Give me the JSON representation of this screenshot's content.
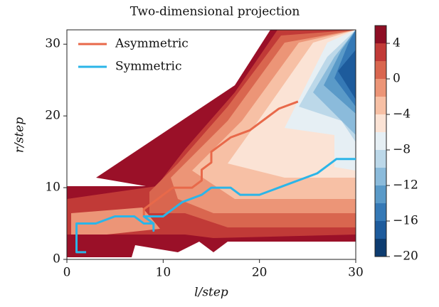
{
  "chart_data": {
    "type": "contour_lines",
    "title": "Two-dimensional projection",
    "x_label": "l/step",
    "y_label": "r/step",
    "xlim": [
      0,
      30
    ],
    "ylim": [
      0,
      32
    ],
    "xticks": [
      0,
      10,
      20,
      30
    ],
    "yticks": [
      0,
      10,
      20,
      30
    ],
    "legend": "upper left",
    "series": [
      {
        "name": "Asymmetric",
        "color": "#e8694a",
        "x": [
          9,
          8,
          8,
          9,
          10,
          11,
          13,
          14,
          14,
          15,
          15,
          17,
          19,
          21,
          22,
          24
        ],
        "y": [
          5,
          6,
          7,
          8,
          9,
          10,
          10,
          11,
          12.5,
          13.5,
          15,
          17,
          18,
          20,
          21,
          22
        ]
      },
      {
        "name": "Symmetric",
        "color": "#2bb5e8",
        "x": [
          2,
          1,
          1,
          3,
          5,
          7,
          8,
          9,
          9,
          9,
          8,
          10,
          11,
          12,
          13,
          14,
          15,
          17,
          18,
          20,
          22,
          24,
          26,
          27,
          28,
          30
        ],
        "y": [
          1,
          1,
          5,
          5,
          6,
          6,
          5,
          5,
          4,
          5,
          6,
          6,
          7,
          8,
          8.5,
          9,
          10,
          10,
          9,
          9,
          10,
          11,
          12,
          13,
          14,
          14
        ]
      }
    ],
    "colorbar": {
      "lim": [
        -20,
        6
      ],
      "levels": [
        -20,
        -18,
        -16,
        -14,
        -12,
        -10,
        -8,
        -6,
        -4,
        -2,
        0,
        2,
        4,
        6
      ],
      "colors": [
        "#0d3c70",
        "#1d5b9c",
        "#3579b6",
        "#5a9ac8",
        "#8bbbdb",
        "#bcd8e9",
        "#e6eff4",
        "#fbe3d5",
        "#f7c0a5",
        "#ec9577",
        "#d9664f",
        "#c13a37",
        "#8e0e24"
      ],
      "ticks": [
        4,
        0,
        {
          "value": -4,
          "label": "−4"
        },
        {
          "value": -8,
          "label": "−8"
        },
        {
          "value": -12,
          "label": "−12"
        },
        {
          "value": -16,
          "label": "−16"
        },
        {
          "value": -20,
          "label": "−20"
        }
      ]
    }
  }
}
